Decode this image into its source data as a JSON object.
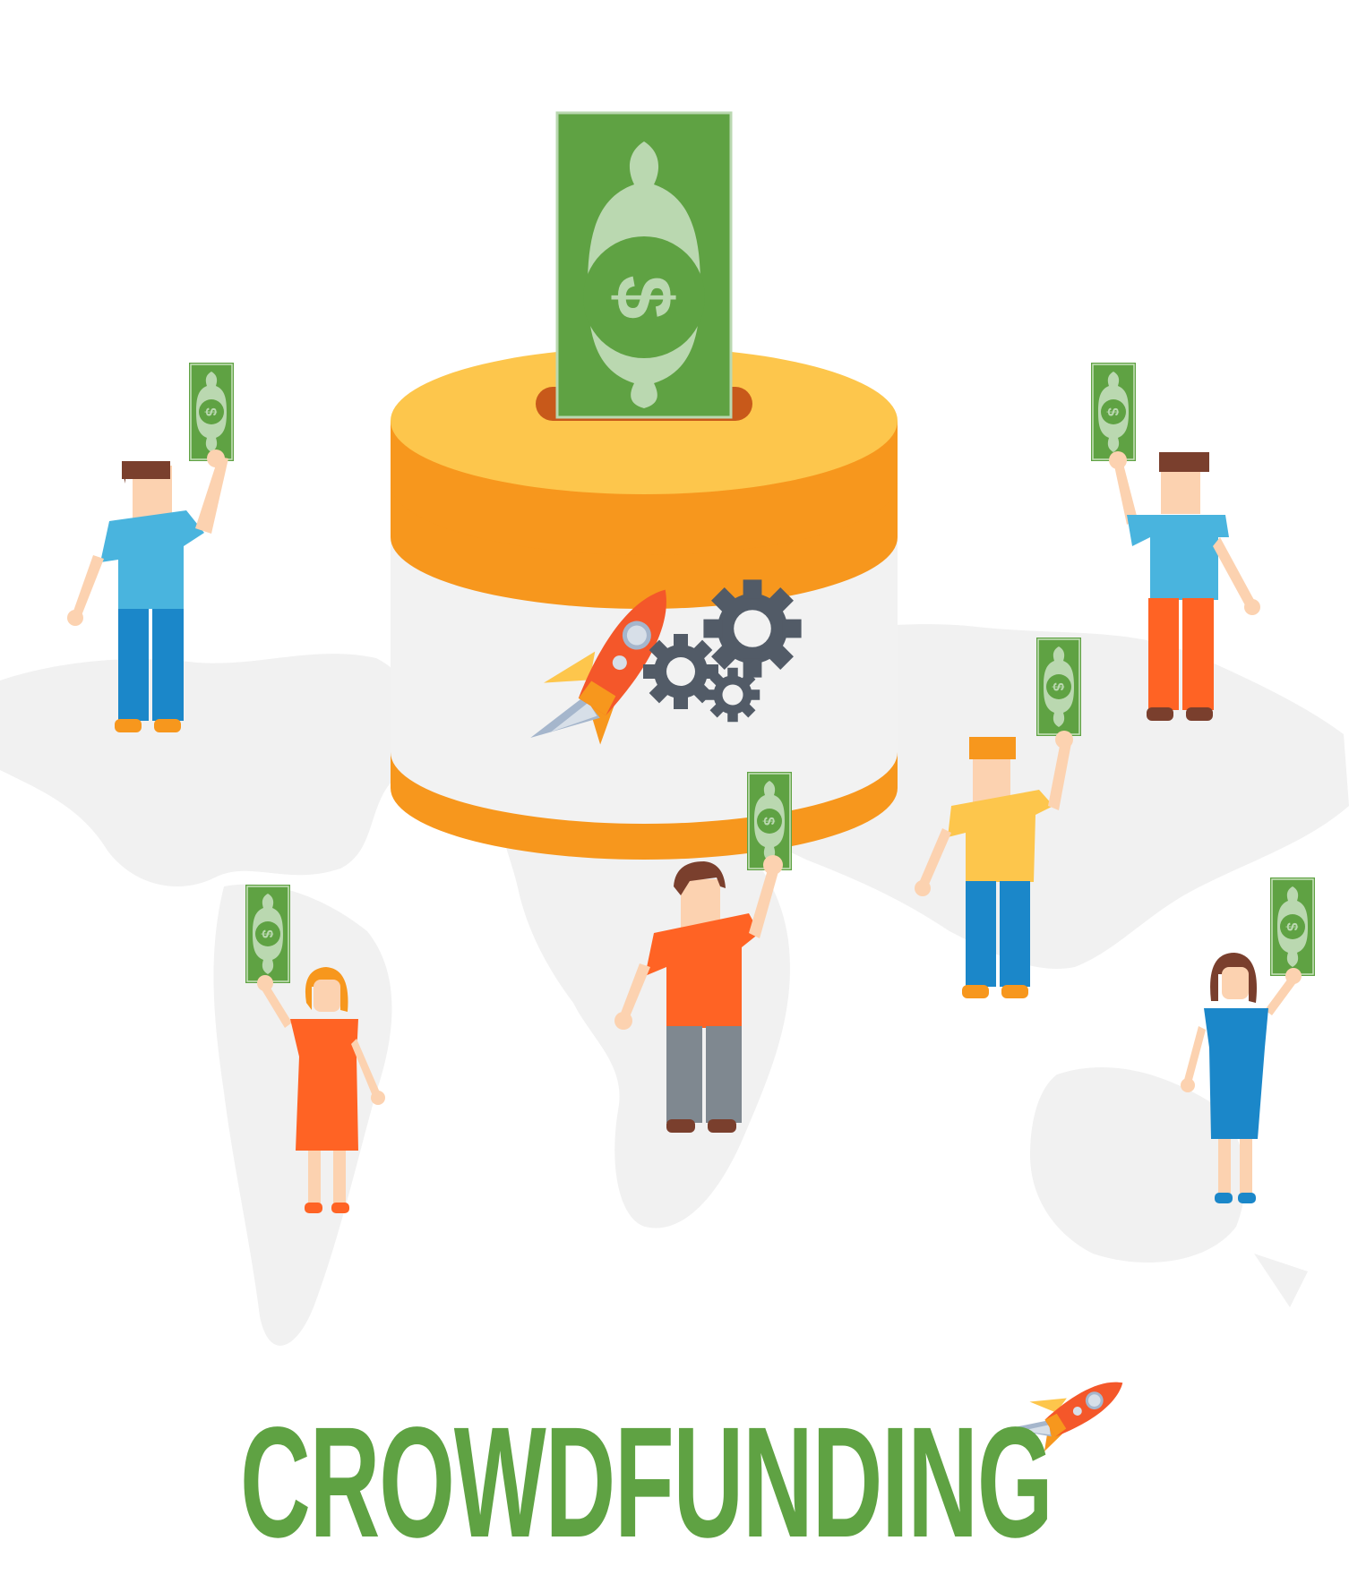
{
  "title": {
    "text": "CROWDFUNDING"
  },
  "colors": {
    "money_green": "#5fa243",
    "money_light": "#bad8b0",
    "box_orange": "#f7971d",
    "box_yellow": "#fdc64c",
    "box_body": "#f2f2f2",
    "rocket_red": "#f4572a",
    "gear_gray": "#525b67",
    "map_gray": "#f1f1f1",
    "shirt_blue": "#49b4de",
    "pants_blue": "#1b87c9",
    "orange_clothes": "#ff6324",
    "skin": "#fcd2b0",
    "hair_brown": "#7a3f2d"
  },
  "icons": [
    "dollar-bill-icon",
    "rocket-icon",
    "gear-icon",
    "donation-box-icon",
    "world-map-icon",
    "person-icon"
  ]
}
